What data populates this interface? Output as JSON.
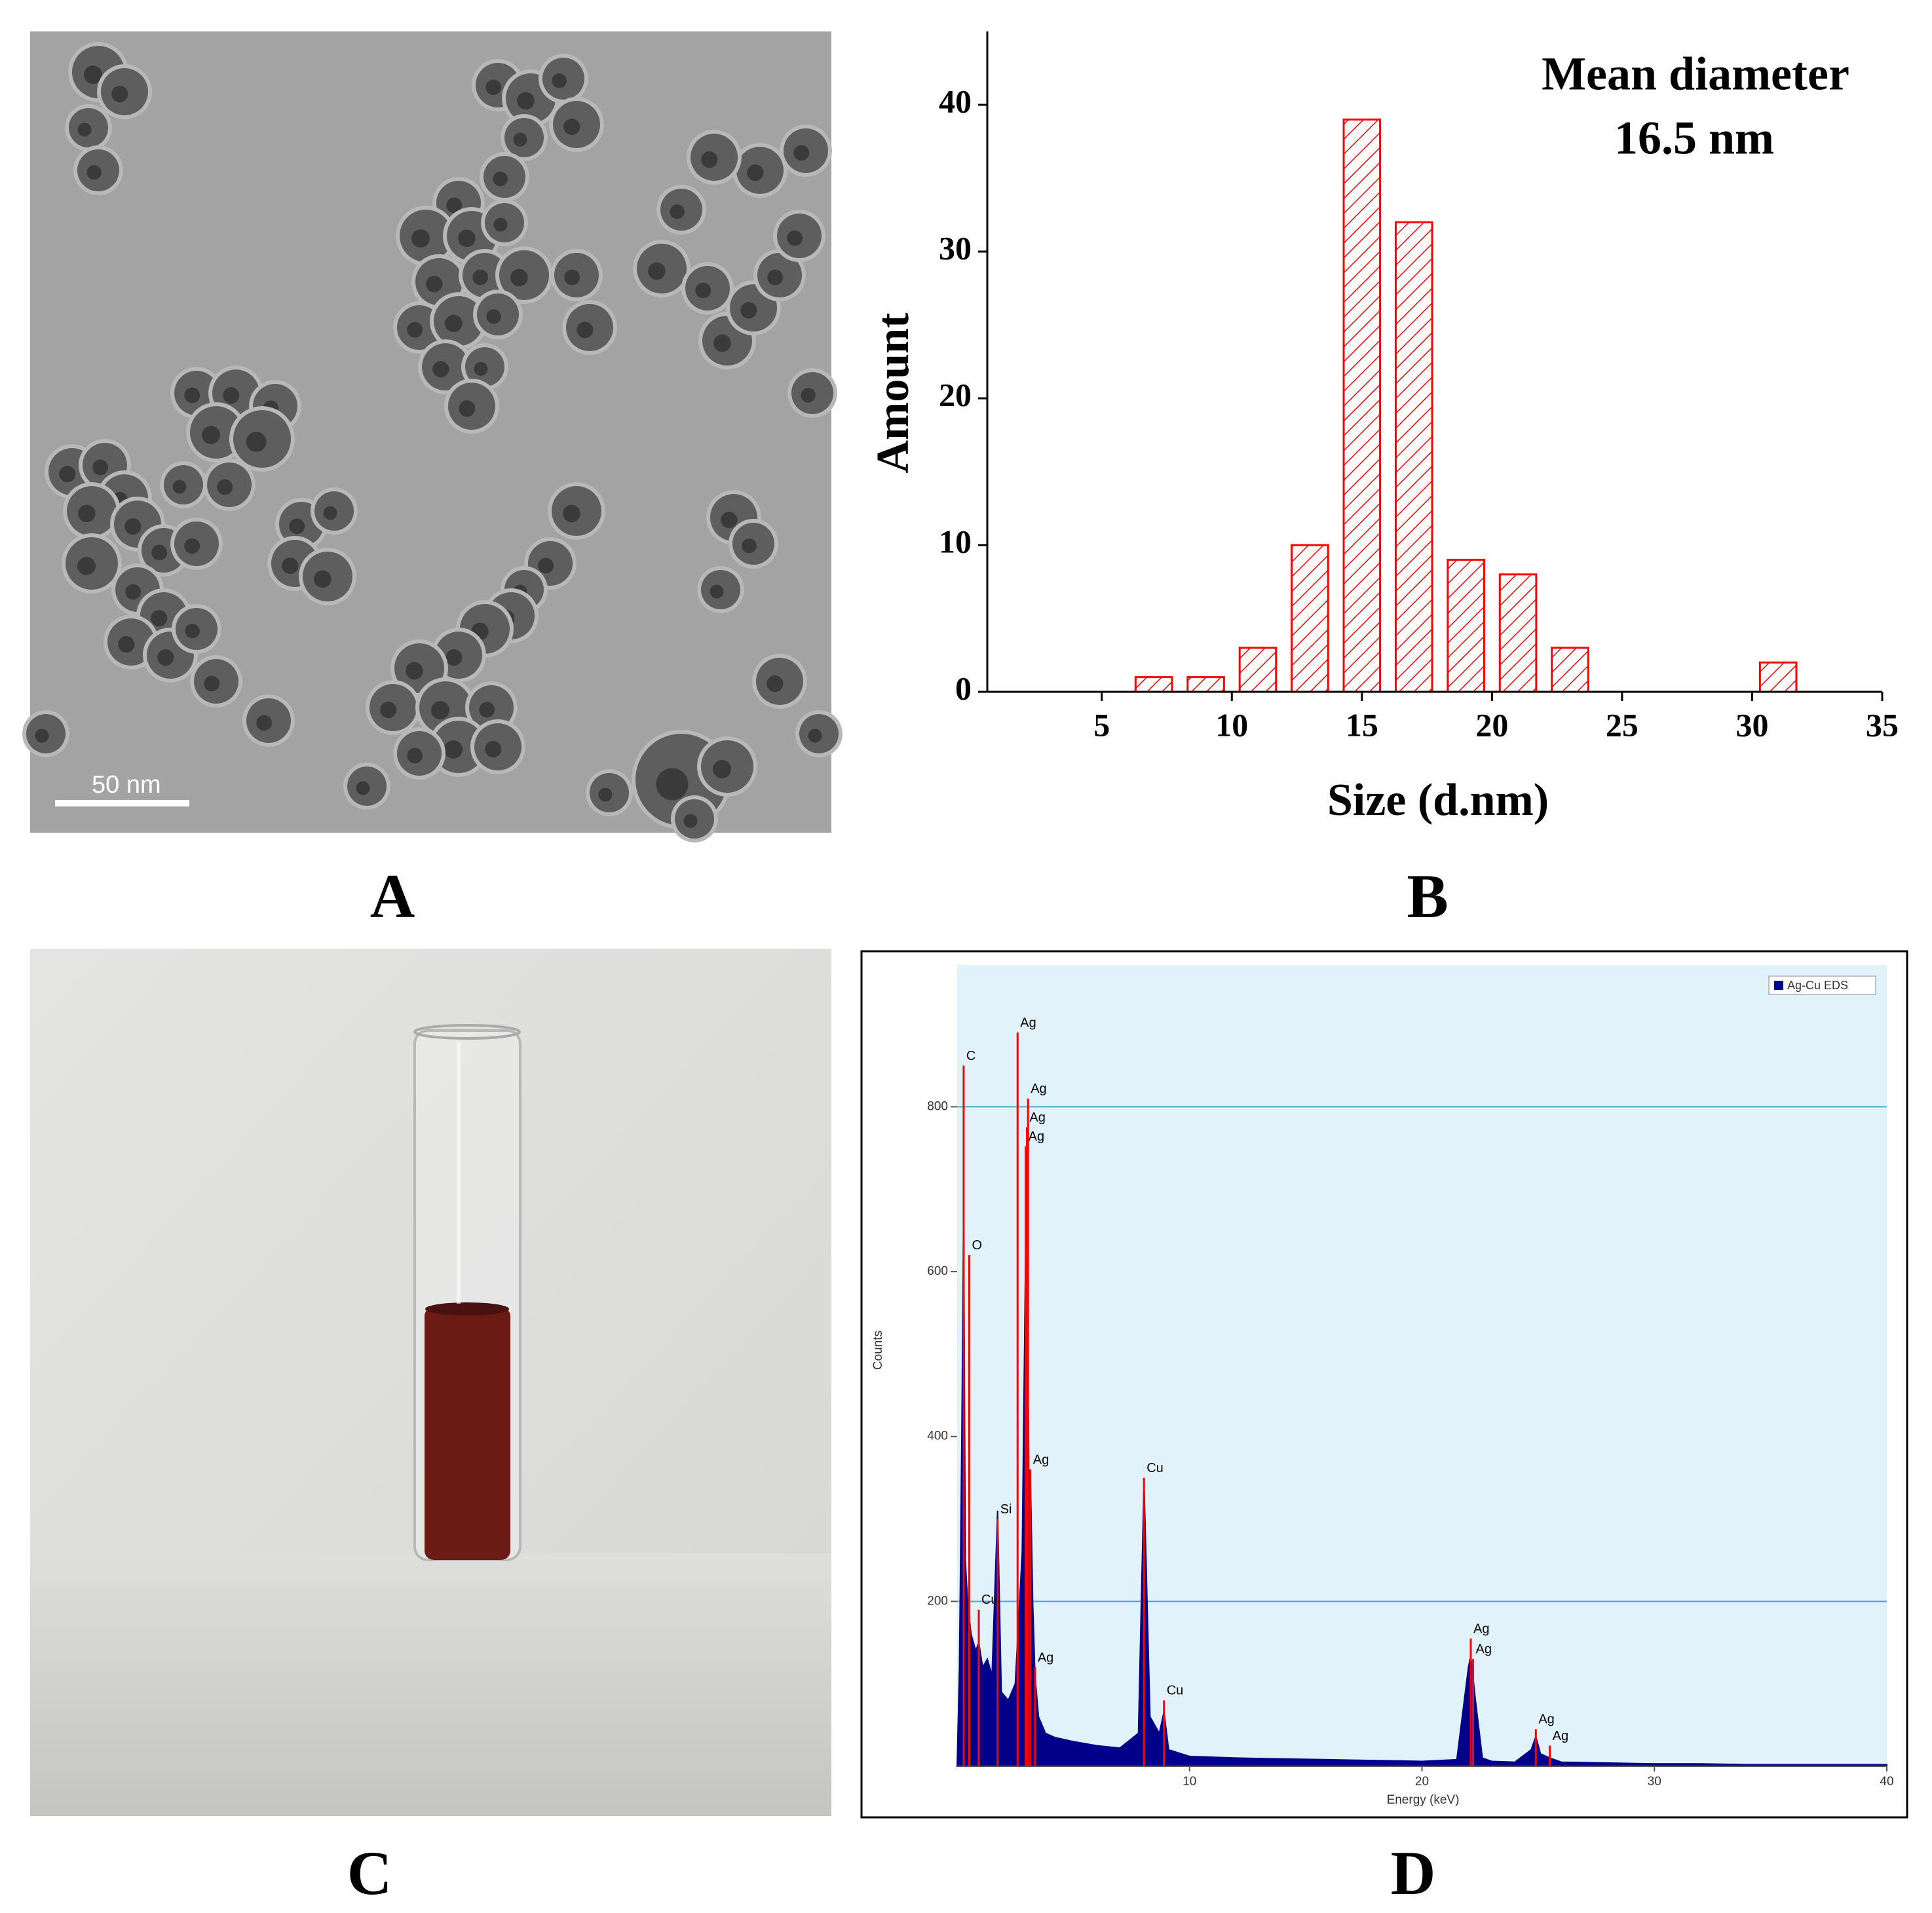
{
  "panel_labels": [
    "A",
    "B",
    "C",
    "D"
  ],
  "scale_bar": "50 nm",
  "chart_data": [
    {
      "type": "bar",
      "x": [
        7,
        9,
        11,
        13,
        15,
        17,
        19,
        21,
        23,
        31
      ],
      "values": [
        1,
        1,
        3,
        10,
        39,
        32,
        9,
        8,
        3,
        2
      ],
      "color": "#ff0000",
      "hatch": true,
      "xlim": [
        0.6,
        35
      ],
      "ylim": [
        0,
        45
      ],
      "xticks": [
        5,
        10,
        15,
        20,
        25,
        30,
        35
      ],
      "yticks": [
        0,
        10,
        20,
        30,
        40
      ],
      "xlabel": "Size (d.nm)",
      "ylabel": "Amount",
      "annotations": [
        "Mean diameter",
        "16.5 nm"
      ]
    },
    {
      "type": "area",
      "x": [
        0,
        0.1,
        0.2,
        0.28,
        0.35,
        0.45,
        0.52,
        0.6,
        0.8,
        0.93,
        1.1,
        1.3,
        1.5,
        1.74,
        1.9,
        2.2,
        2.5,
        2.8,
        2.98,
        3.1,
        3.15,
        3.25,
        3.35,
        3.5,
        3.8,
        4.2,
        5,
        6,
        7,
        7.8,
        8.04,
        8.3,
        8.7,
        8.9,
        9.1,
        10,
        12,
        14,
        16,
        18,
        20,
        21.5,
        22.0,
        22.1,
        22.3,
        22.6,
        23,
        24,
        24.7,
        24.9,
        25.1,
        25.5,
        26,
        28,
        30,
        32,
        34,
        36,
        38,
        40
      ],
      "series": [
        {
          "name": "Ag-Cu EDS",
          "color": "#00008b",
          "values": [
            0,
            120,
            400,
            680,
            250,
            200,
            180,
            160,
            140,
            150,
            120,
            130,
            110,
            310,
            90,
            80,
            100,
            260,
            710,
            300,
            360,
            200,
            110,
            60,
            40,
            35,
            30,
            25,
            22,
            40,
            346,
            60,
            40,
            66,
            20,
            12,
            10,
            9,
            8,
            7,
            6,
            8,
            120,
            134,
            80,
            10,
            6,
            5,
            20,
            36,
            15,
            10,
            5,
            4,
            3,
            3,
            2,
            2,
            2,
            2
          ]
        }
      ],
      "xlim": [
        0,
        40
      ],
      "ylim": [
        0,
        972
      ],
      "xticks": [
        10,
        20,
        30,
        40
      ],
      "yticks": [
        200,
        400,
        600,
        800
      ],
      "ygrid": [
        200,
        800
      ],
      "xlabel": "Energy (keV)",
      "ylabel": "Counts",
      "legend": "upper right",
      "peak_color": "#ff0000",
      "peaks": [
        {
          "label": "C",
          "energy": 0.28,
          "counts": 850
        },
        {
          "label": "O",
          "energy": 0.52,
          "counts": 620
        },
        {
          "label": "Cu",
          "energy": 0.93,
          "counts": 190
        },
        {
          "label": "Si",
          "energy": 1.74,
          "counts": 300
        },
        {
          "label": "Ag",
          "energy": 2.6,
          "counts": 890
        },
        {
          "label": "Ag",
          "energy": 3.05,
          "counts": 810
        },
        {
          "label": "Ag",
          "energy": 3.0,
          "counts": 775
        },
        {
          "label": "Ag",
          "energy": 2.95,
          "counts": 752
        },
        {
          "label": "Ag",
          "energy": 3.15,
          "counts": 360
        },
        {
          "label": "Ag",
          "energy": 3.35,
          "counts": 120
        },
        {
          "label": "Cu",
          "energy": 8.04,
          "counts": 350
        },
        {
          "label": "Cu",
          "energy": 8.9,
          "counts": 80
        },
        {
          "label": "Ag",
          "energy": 22.1,
          "counts": 155
        },
        {
          "label": "Ag",
          "energy": 22.2,
          "counts": 130
        },
        {
          "label": "Ag",
          "energy": 24.9,
          "counts": 45
        },
        {
          "label": "Ag",
          "energy": 25.5,
          "counts": 25
        }
      ]
    }
  ]
}
